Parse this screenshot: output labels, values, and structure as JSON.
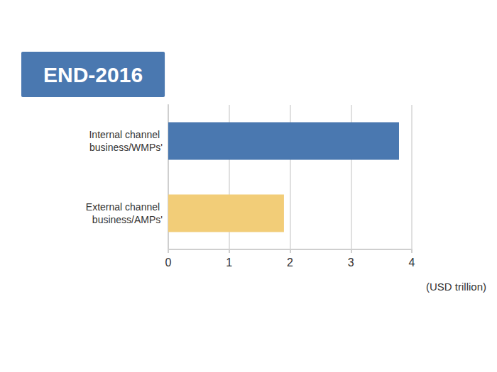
{
  "chart_data": {
    "type": "bar",
    "orientation": "horizontal",
    "title": "END-2016",
    "x_label": "(USD trillion)",
    "categories": [
      "Internal channel business/WMPs'",
      "External channel business/AMPs'"
    ],
    "values": [
      3.79,
      1.9
    ],
    "colors": [
      "#4a78b0",
      "#f2cd78"
    ],
    "xlim": [
      0,
      4
    ],
    "xticks": [
      0,
      1,
      2,
      3,
      4
    ],
    "grid": true
  }
}
